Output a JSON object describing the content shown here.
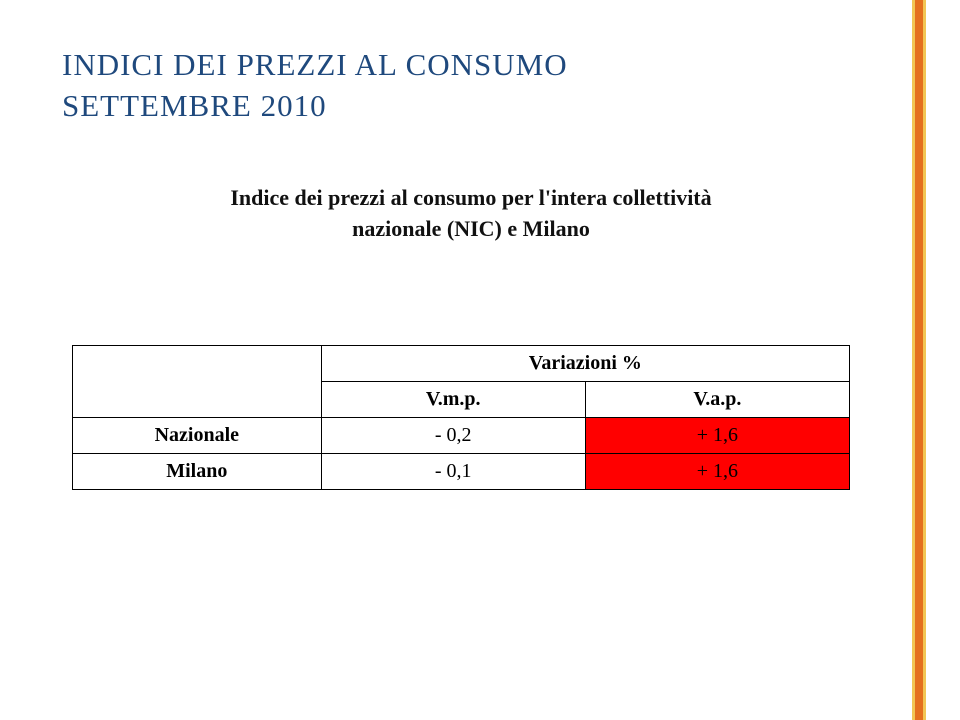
{
  "colors": {
    "title": "#1f497d",
    "accent_outer": "#f2c654",
    "accent_inner": "#e4701e",
    "highlight_cell": "#ff0000",
    "table_border": "#000000",
    "background": "#ffffff"
  },
  "title": {
    "line1": "INDICI DEI PREZZI AL CONSUMO",
    "line2": "SETTEMBRE 2010"
  },
  "subtitle": {
    "line1": "Indice dei prezzi al consumo per l'intera collettività",
    "line2": "nazionale (NIC) e Milano"
  },
  "table": {
    "variazioni_header": "Variazioni %",
    "col_vmp": "V.m.p.",
    "col_vap": "V.a.p.",
    "rows": [
      {
        "label": "Nazionale",
        "vmp": "- 0,2",
        "vap": "+ 1,6"
      },
      {
        "label": "Milano",
        "vmp": "- 0,1",
        "vap": "+ 1,6"
      }
    ]
  }
}
